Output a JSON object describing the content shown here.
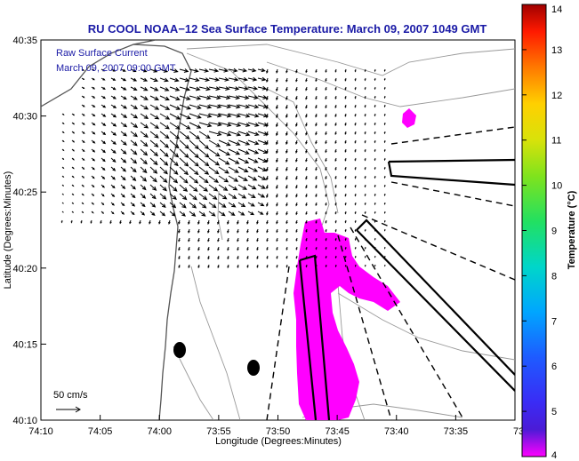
{
  "chart_data": {
    "type": "heatmap",
    "title": "RU COOL  NOAA−12  Sea Surface Temperature:  March 09, 2007 1049 GMT",
    "legend": {
      "line1": "Raw Surface Current",
      "line2": "March 09, 2007 09:00 GMT",
      "scale_label": "50 cm/s"
    },
    "xlabel": "Longitude (Degrees:Minutes)",
    "ylabel": "Latitude (Degrees:Minutes)",
    "x_ticks": [
      "74:10",
      "74:05",
      "74:00",
      "73:55",
      "73:50",
      "73:45",
      "73:40",
      "73:35",
      "73:3"
    ],
    "y_ticks": [
      "40:10",
      "40:15",
      "40:20",
      "40:25",
      "40:30",
      "40:35"
    ],
    "xlim": [
      "74:10",
      "73:30"
    ],
    "ylim": [
      "40:10",
      "40:35"
    ],
    "grid": false,
    "colorbar": {
      "label": "Temperature (°C)",
      "min": 4,
      "max": 14,
      "ticks": [
        "4",
        "5",
        "6",
        "7",
        "8",
        "9",
        "10",
        "11",
        "12",
        "13",
        "14"
      ]
    },
    "sst_range_shown_c": [
      4,
      5
    ],
    "colors": {
      "sst_patch": "#ff00ff",
      "title_text": "#1a1aa6",
      "frame": "#000000",
      "contours": "#999999"
    }
  }
}
